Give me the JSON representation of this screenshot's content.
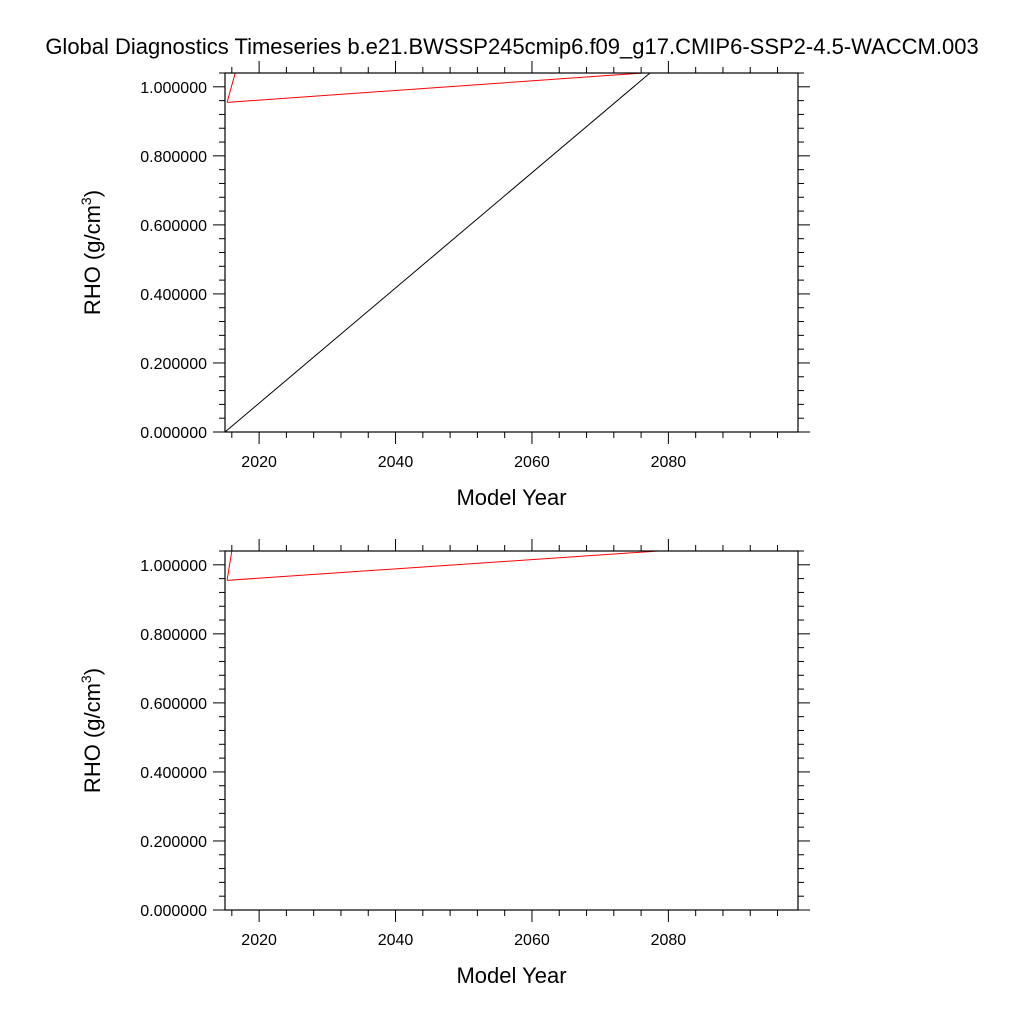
{
  "title": "Global Diagnostics Timeseries b.e21.BWSSP245cmip6.f09_g17.CMIP6-SSP2-4.5-WACCM.003",
  "chart_data": [
    {
      "type": "line",
      "xlabel": "Model Year",
      "ylabel_main": "RHO (g/cm",
      "ylabel_sup": "3",
      "ylabel_close": ")",
      "xlim": [
        2015,
        2099
      ],
      "ylim": [
        0.0,
        1.04
      ],
      "xticks": [
        2020,
        2040,
        2060,
        2080
      ],
      "xtick_labels": [
        "2020",
        "2040",
        "2060",
        "2080"
      ],
      "yticks": [
        0.0,
        0.2,
        0.4,
        0.6,
        0.8,
        1.0
      ],
      "ytick_labels": [
        "0.000000",
        "0.200000",
        "0.400000",
        "0.600000",
        "0.800000",
        "1.000000"
      ],
      "grid": false,
      "series": [
        {
          "color": "#000000",
          "x": [
            2015,
            2077.3
          ],
          "y": [
            0.0,
            1.04
          ]
        },
        {
          "color": "#ff0000",
          "x": [
            2015.3,
            2076.3,
            2099,
            2016.5,
            2015.3
          ],
          "y": [
            0.955,
            1.04,
            1.04,
            1.04,
            0.955
          ]
        }
      ]
    },
    {
      "type": "line",
      "xlabel": "Model Year",
      "ylabel_main": "RHO (g/cm",
      "ylabel_sup": "3",
      "ylabel_close": ")",
      "xlim": [
        2015,
        2099
      ],
      "ylim": [
        0.0,
        1.04
      ],
      "xticks": [
        2020,
        2040,
        2060,
        2080
      ],
      "xtick_labels": [
        "2020",
        "2040",
        "2060",
        "2080"
      ],
      "yticks": [
        0.0,
        0.2,
        0.4,
        0.6,
        0.8,
        1.0
      ],
      "ytick_labels": [
        "0.000000",
        "0.200000",
        "0.400000",
        "0.600000",
        "0.800000",
        "1.000000"
      ],
      "grid": false,
      "series": [
        {
          "color": "#ff0000",
          "x": [
            2015.3,
            2078.5,
            2099,
            2016.0,
            2015.3
          ],
          "y": [
            0.955,
            1.04,
            1.04,
            1.04,
            0.955
          ]
        }
      ]
    }
  ]
}
